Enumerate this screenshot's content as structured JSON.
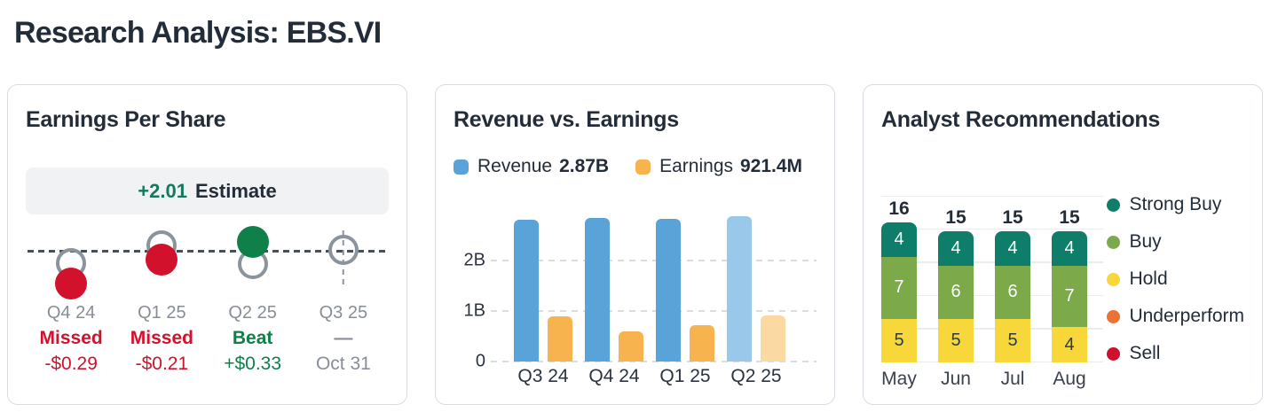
{
  "page": {
    "title": "Research Analysis: EBS.VI"
  },
  "panels": {
    "eps": {
      "title": "Earnings Per Share",
      "estimate_value": "+2.01",
      "estimate_label": "Estimate"
    },
    "revenue": {
      "title": "Revenue vs. Earnings",
      "legend": [
        {
          "label": "Revenue",
          "value": "2.87B"
        },
        {
          "label": "Earnings",
          "value": "921.4M"
        }
      ]
    },
    "analyst": {
      "title": "Analyst Recommendations"
    }
  },
  "colors": {
    "text_dark": "#232d39",
    "text_gray": "#878e97",
    "red": "#d2112d",
    "green": "#10804a",
    "estimate_green": "#15795c",
    "ring_gray": "#8b939d",
    "card_border": "#d8dde3",
    "estimate_bg": "#f1f2f4"
  },
  "chart_data": [
    {
      "id": "earnings-per-share",
      "type": "scatter",
      "title": "Earnings Per Share",
      "estimate_note": "+2.01 Estimate",
      "points": [
        {
          "quarter": "Q4 24",
          "result": "Missed",
          "detail": "-$0.29",
          "kind": "missed",
          "marker": {
            "ring_dy": 15,
            "dot_dy": 38
          }
        },
        {
          "quarter": "Q1 25",
          "result": "Missed",
          "detail": "-$0.21",
          "kind": "missed",
          "marker": {
            "ring_dy": -5,
            "dot_dy": 11
          }
        },
        {
          "quarter": "Q2 25",
          "result": "Beat",
          "detail": "+$0.33",
          "kind": "beat",
          "marker": {
            "ring_dy": 16,
            "dot_dy": -9
          }
        },
        {
          "quarter": "Q3 25",
          "result": "—",
          "detail": "Oct 31",
          "kind": "pending",
          "marker": {
            "ring_dy": 0
          }
        }
      ]
    },
    {
      "id": "revenue-vs-earnings",
      "type": "bar",
      "title": "Revenue vs. Earnings",
      "categories": [
        "Q3 24",
        "Q4 24",
        "Q1 25",
        "Q2 25"
      ],
      "series": [
        {
          "name": "Revenue",
          "values": [
            2.8,
            2.85,
            2.82,
            2.87
          ],
          "unit": "B",
          "color": "#5aa3d9",
          "highlight_color": "#9ac8eb"
        },
        {
          "name": "Earnings",
          "values": [
            0.89,
            0.6,
            0.72,
            0.92
          ],
          "unit": "B",
          "color": "#f7b44e",
          "highlight_color": "#fbd9a2"
        }
      ],
      "latest": {
        "revenue": "2.87B",
        "earnings": "921.4M"
      },
      "highlight_index": 3,
      "yticks": [
        {
          "label": "0",
          "value": 0
        },
        {
          "label": "1B",
          "value": 1
        },
        {
          "label": "2B",
          "value": 2
        }
      ],
      "ylim": [
        0,
        2.95
      ],
      "grid": "dashed-horizontal"
    },
    {
      "id": "analyst-recommendations",
      "type": "stacked_bar",
      "title": "Analyst Recommendations",
      "categories": [
        "May",
        "Jun",
        "Jul",
        "Aug"
      ],
      "totals": [
        16,
        15,
        15,
        15
      ],
      "series": [
        {
          "name": "Strong Buy",
          "values": [
            4,
            4,
            4,
            4
          ],
          "color": "#0e7d6a",
          "label_color": "#ffffff"
        },
        {
          "name": "Buy",
          "values": [
            7,
            6,
            6,
            7
          ],
          "color": "#7caa4b",
          "label_color": "#ffffff"
        },
        {
          "name": "Hold",
          "values": [
            5,
            5,
            5,
            4
          ],
          "color": "#f8d73a",
          "label_color": "#323a45"
        },
        {
          "name": "Underperform",
          "values": [
            0,
            0,
            0,
            0
          ],
          "color": "#ed7132",
          "label_color": "#ffffff"
        },
        {
          "name": "Sell",
          "values": [
            0,
            0,
            0,
            0
          ],
          "color": "#d1102d",
          "label_color": "#ffffff"
        }
      ],
      "legend_position": "right",
      "ylim": [
        0,
        19
      ]
    }
  ]
}
